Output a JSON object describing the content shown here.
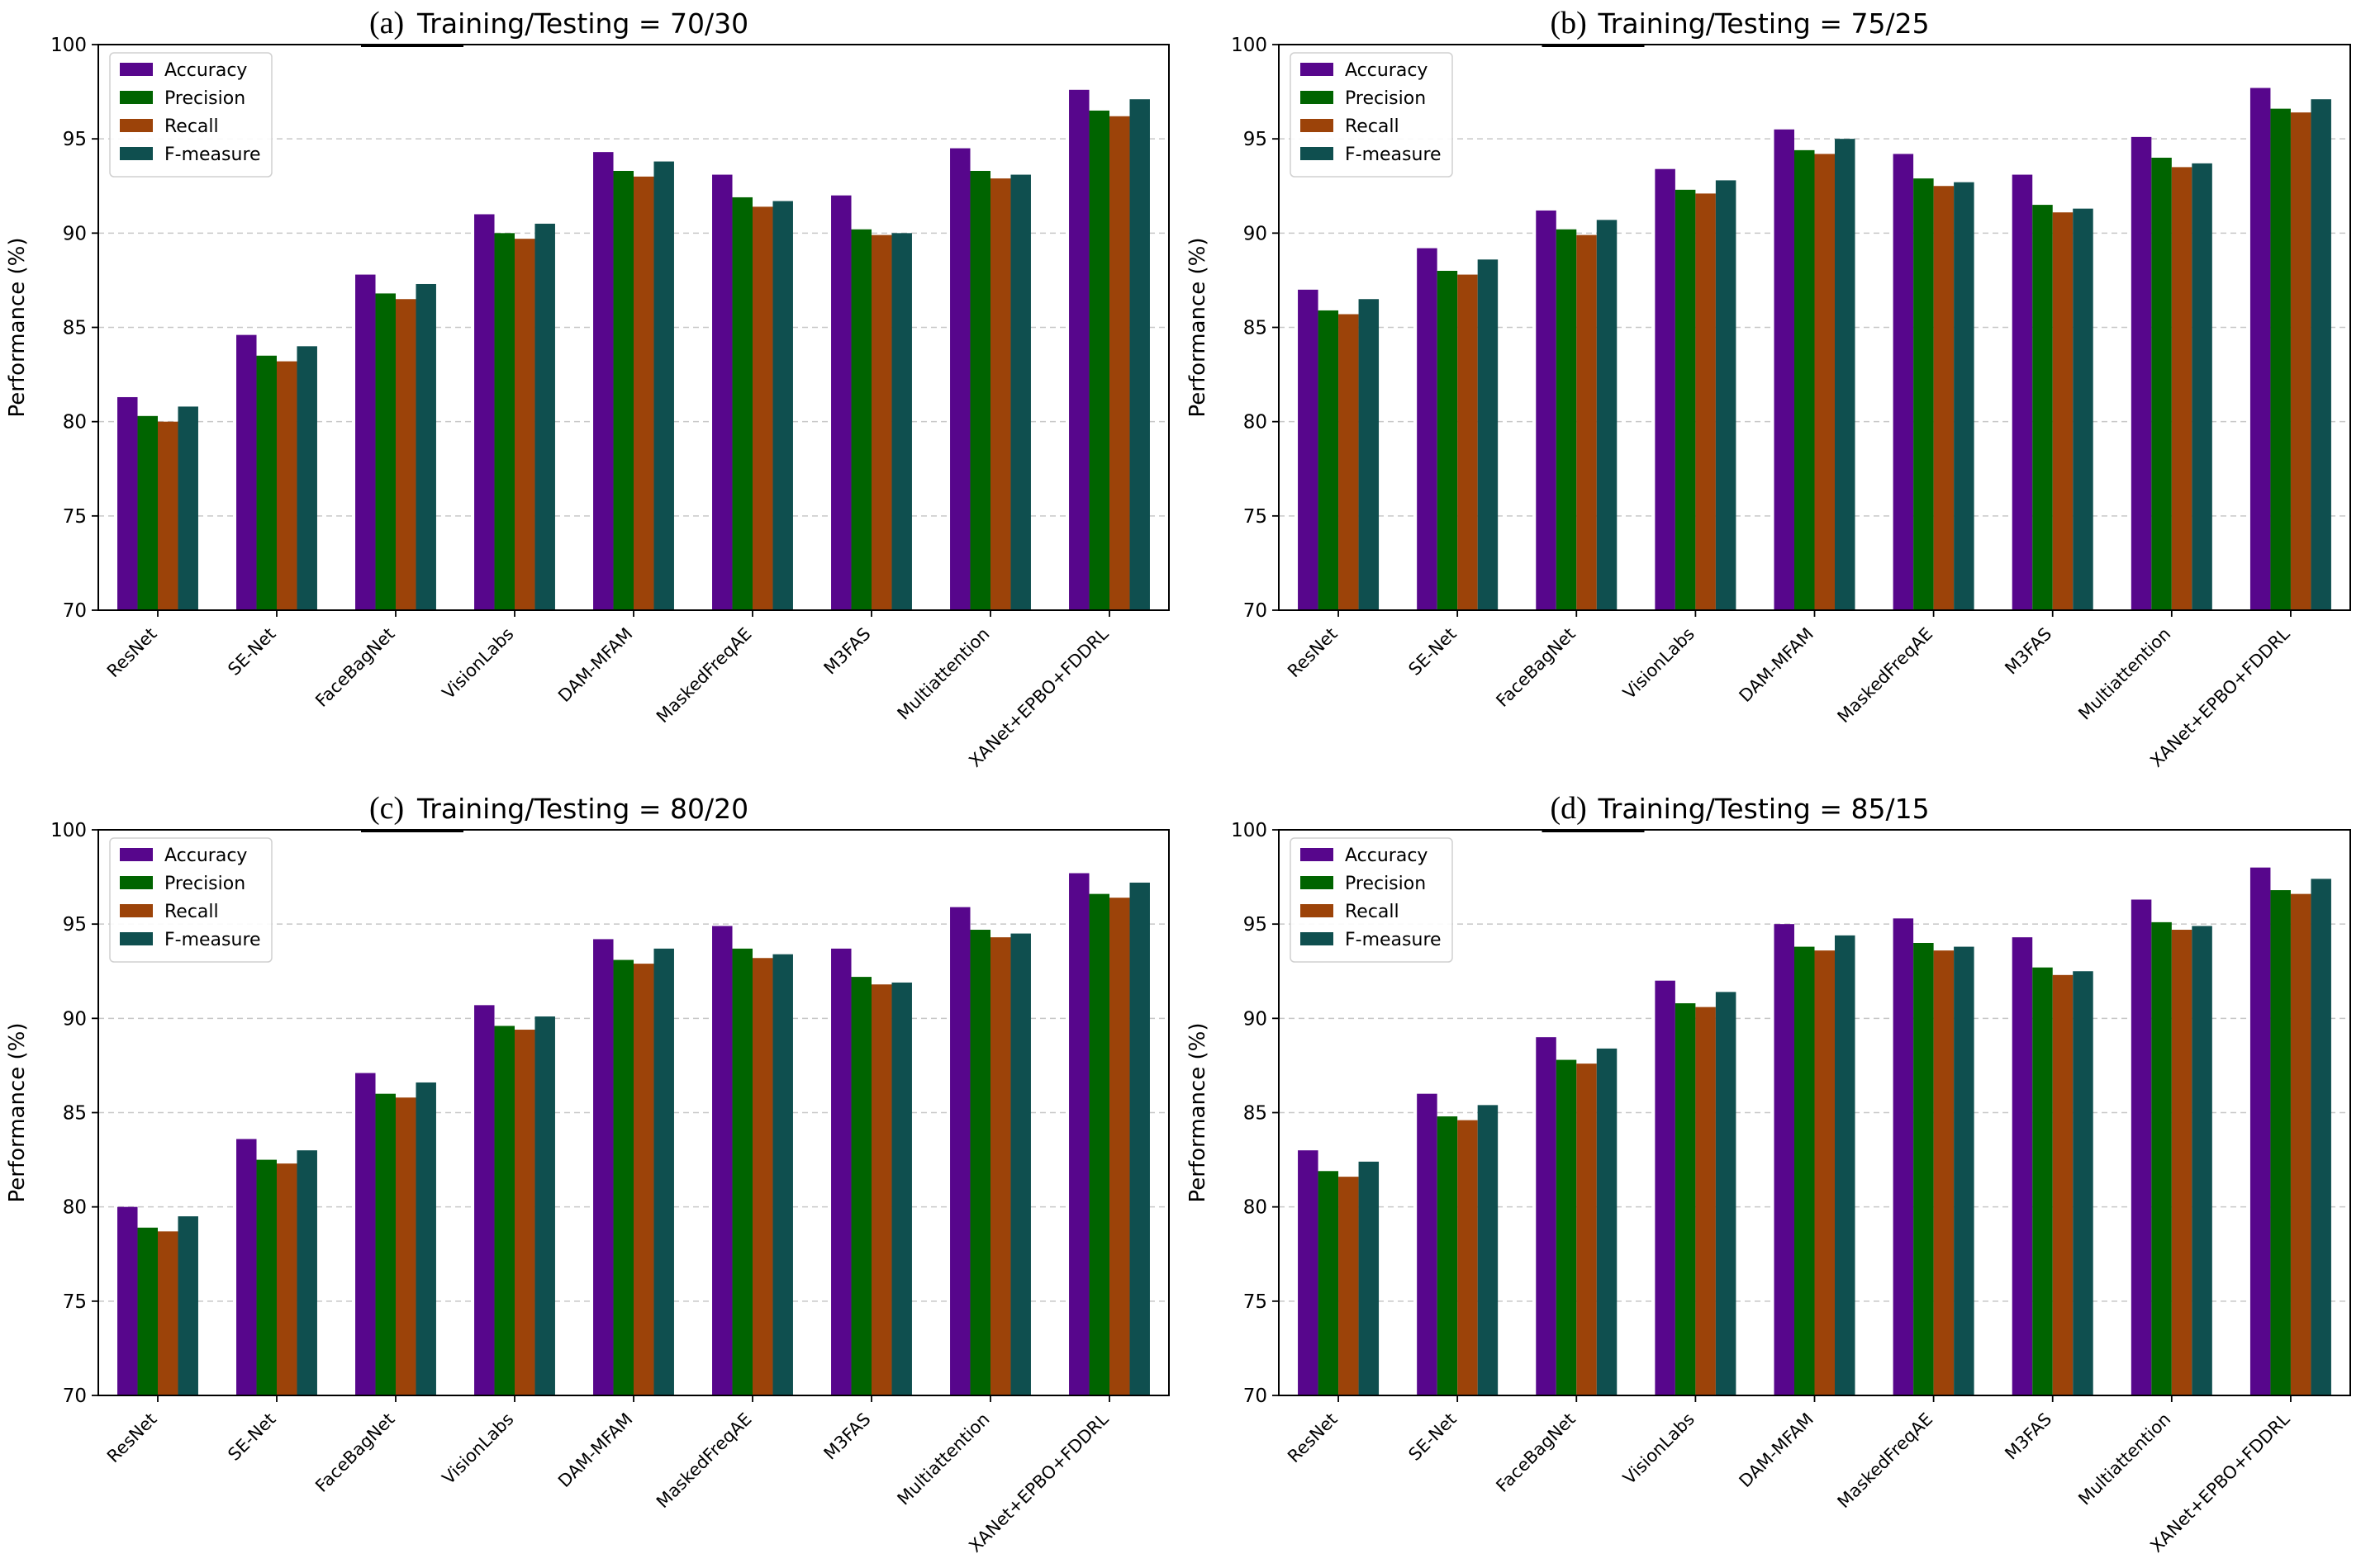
{
  "figure": {
    "colors": {
      "Accuracy": "#57068c",
      "Precision": "#006400",
      "Recall": "#9c4309",
      "F-measure": "#0f4f4f",
      "grid": "#c8c8c8",
      "axis": "#000000"
    }
  },
  "chart_data": [
    {
      "type": "bar",
      "panel": "(a)",
      "title": "Training/Testing = 70/30",
      "xlabel": "",
      "ylabel": "Performance (%)",
      "ylim": [
        70,
        100
      ],
      "yticks": [
        70,
        75,
        80,
        85,
        90,
        95,
        100
      ],
      "grid": "horizontal dashed",
      "legend": "top-left",
      "categories": [
        "ResNet",
        "SE-Net",
        "FaceBagNet",
        "VisionLabs",
        "DAM-MFAM",
        "MaskedFreqAE",
        "M3FAS",
        "Multiattention",
        "XANet+EPBO+FDDRL"
      ],
      "series": [
        {
          "name": "Accuracy",
          "values": [
            81.3,
            84.6,
            87.8,
            91.0,
            94.3,
            93.1,
            92.0,
            94.5,
            97.6
          ]
        },
        {
          "name": "Precision",
          "values": [
            80.3,
            83.5,
            86.8,
            90.0,
            93.3,
            91.9,
            90.2,
            93.3,
            96.5
          ]
        },
        {
          "name": "Recall",
          "values": [
            80.0,
            83.2,
            86.5,
            89.7,
            93.0,
            91.4,
            89.9,
            92.9,
            96.2
          ]
        },
        {
          "name": "F-measure",
          "values": [
            80.8,
            84.0,
            87.3,
            90.5,
            93.8,
            91.7,
            90.0,
            93.1,
            97.1
          ]
        }
      ]
    },
    {
      "type": "bar",
      "panel": "(b)",
      "title": "Training/Testing = 75/25",
      "xlabel": "",
      "ylabel": "Performance (%)",
      "ylim": [
        70,
        100
      ],
      "yticks": [
        70,
        75,
        80,
        85,
        90,
        95,
        100
      ],
      "grid": "horizontal dashed",
      "legend": "top-left",
      "categories": [
        "ResNet",
        "SE-Net",
        "FaceBagNet",
        "VisionLabs",
        "DAM-MFAM",
        "MaskedFreqAE",
        "M3FAS",
        "Multiattention",
        "XANet+EPBO+FDDRL"
      ],
      "series": [
        {
          "name": "Accuracy",
          "values": [
            87.0,
            89.2,
            91.2,
            93.4,
            95.5,
            94.2,
            93.1,
            95.1,
            97.7
          ]
        },
        {
          "name": "Precision",
          "values": [
            85.9,
            88.0,
            90.2,
            92.3,
            94.4,
            92.9,
            91.5,
            94.0,
            96.6
          ]
        },
        {
          "name": "Recall",
          "values": [
            85.7,
            87.8,
            89.9,
            92.1,
            94.2,
            92.5,
            91.1,
            93.5,
            96.4
          ]
        },
        {
          "name": "F-measure",
          "values": [
            86.5,
            88.6,
            90.7,
            92.8,
            95.0,
            92.7,
            91.3,
            93.7,
            97.1
          ]
        }
      ]
    },
    {
      "type": "bar",
      "panel": "(c)",
      "title": "Training/Testing = 80/20",
      "xlabel": "",
      "ylabel": "Performance (%)",
      "ylim": [
        70,
        100
      ],
      "yticks": [
        70,
        75,
        80,
        85,
        90,
        95,
        100
      ],
      "grid": "horizontal dashed",
      "legend": "top-left",
      "categories": [
        "ResNet",
        "SE-Net",
        "FaceBagNet",
        "VisionLabs",
        "DAM-MFAM",
        "MaskedFreqAE",
        "M3FAS",
        "Multiattention",
        "XANet+EPBO+FDDRL"
      ],
      "series": [
        {
          "name": "Accuracy",
          "values": [
            80.0,
            83.6,
            87.1,
            90.7,
            94.2,
            94.9,
            93.7,
            95.9,
            97.7
          ]
        },
        {
          "name": "Precision",
          "values": [
            78.9,
            82.5,
            86.0,
            89.6,
            93.1,
            93.7,
            92.2,
            94.7,
            96.6
          ]
        },
        {
          "name": "Recall",
          "values": [
            78.7,
            82.3,
            85.8,
            89.4,
            92.9,
            93.2,
            91.8,
            94.3,
            96.4
          ]
        },
        {
          "name": "F-measure",
          "values": [
            79.5,
            83.0,
            86.6,
            90.1,
            93.7,
            93.4,
            91.9,
            94.5,
            97.2
          ]
        }
      ]
    },
    {
      "type": "bar",
      "panel": "(d)",
      "title": "Training/Testing = 85/15",
      "xlabel": "",
      "ylabel": "Performance (%)",
      "ylim": [
        70,
        100
      ],
      "yticks": [
        70,
        75,
        80,
        85,
        90,
        95,
        100
      ],
      "grid": "horizontal dashed",
      "legend": "top-left",
      "categories": [
        "ResNet",
        "SE-Net",
        "FaceBagNet",
        "VisionLabs",
        "DAM-MFAM",
        "MaskedFreqAE",
        "M3FAS",
        "Multiattention",
        "XANet+EPBO+FDDRL"
      ],
      "series": [
        {
          "name": "Accuracy",
          "values": [
            83.0,
            86.0,
            89.0,
            92.0,
            95.0,
            95.3,
            94.3,
            96.3,
            98.0
          ]
        },
        {
          "name": "Precision",
          "values": [
            81.9,
            84.8,
            87.8,
            90.8,
            93.8,
            94.0,
            92.7,
            95.1,
            96.8
          ]
        },
        {
          "name": "Recall",
          "values": [
            81.6,
            84.6,
            87.6,
            90.6,
            93.6,
            93.6,
            92.3,
            94.7,
            96.6
          ]
        },
        {
          "name": "F-measure",
          "values": [
            82.4,
            85.4,
            88.4,
            91.4,
            94.4,
            93.8,
            92.5,
            94.9,
            97.4
          ]
        }
      ]
    }
  ]
}
